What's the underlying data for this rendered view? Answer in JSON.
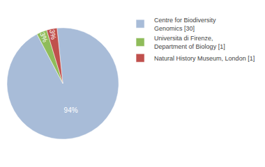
{
  "chart_data": {
    "type": "pie",
    "categories": [
      "Centre for Biodiversity\nGenomics [30]",
      "Universita di Firenze,\nDepartment of Biology [1]",
      "Natural History Museum, London [1]"
    ],
    "values": [
      94,
      3,
      3
    ],
    "value_labels": [
      "94%",
      "3%",
      "3%"
    ],
    "colors": [
      "#a8bcd8",
      "#8fbc5a",
      "#c0504d"
    ],
    "data_labels": true,
    "legend": "upper right"
  }
}
